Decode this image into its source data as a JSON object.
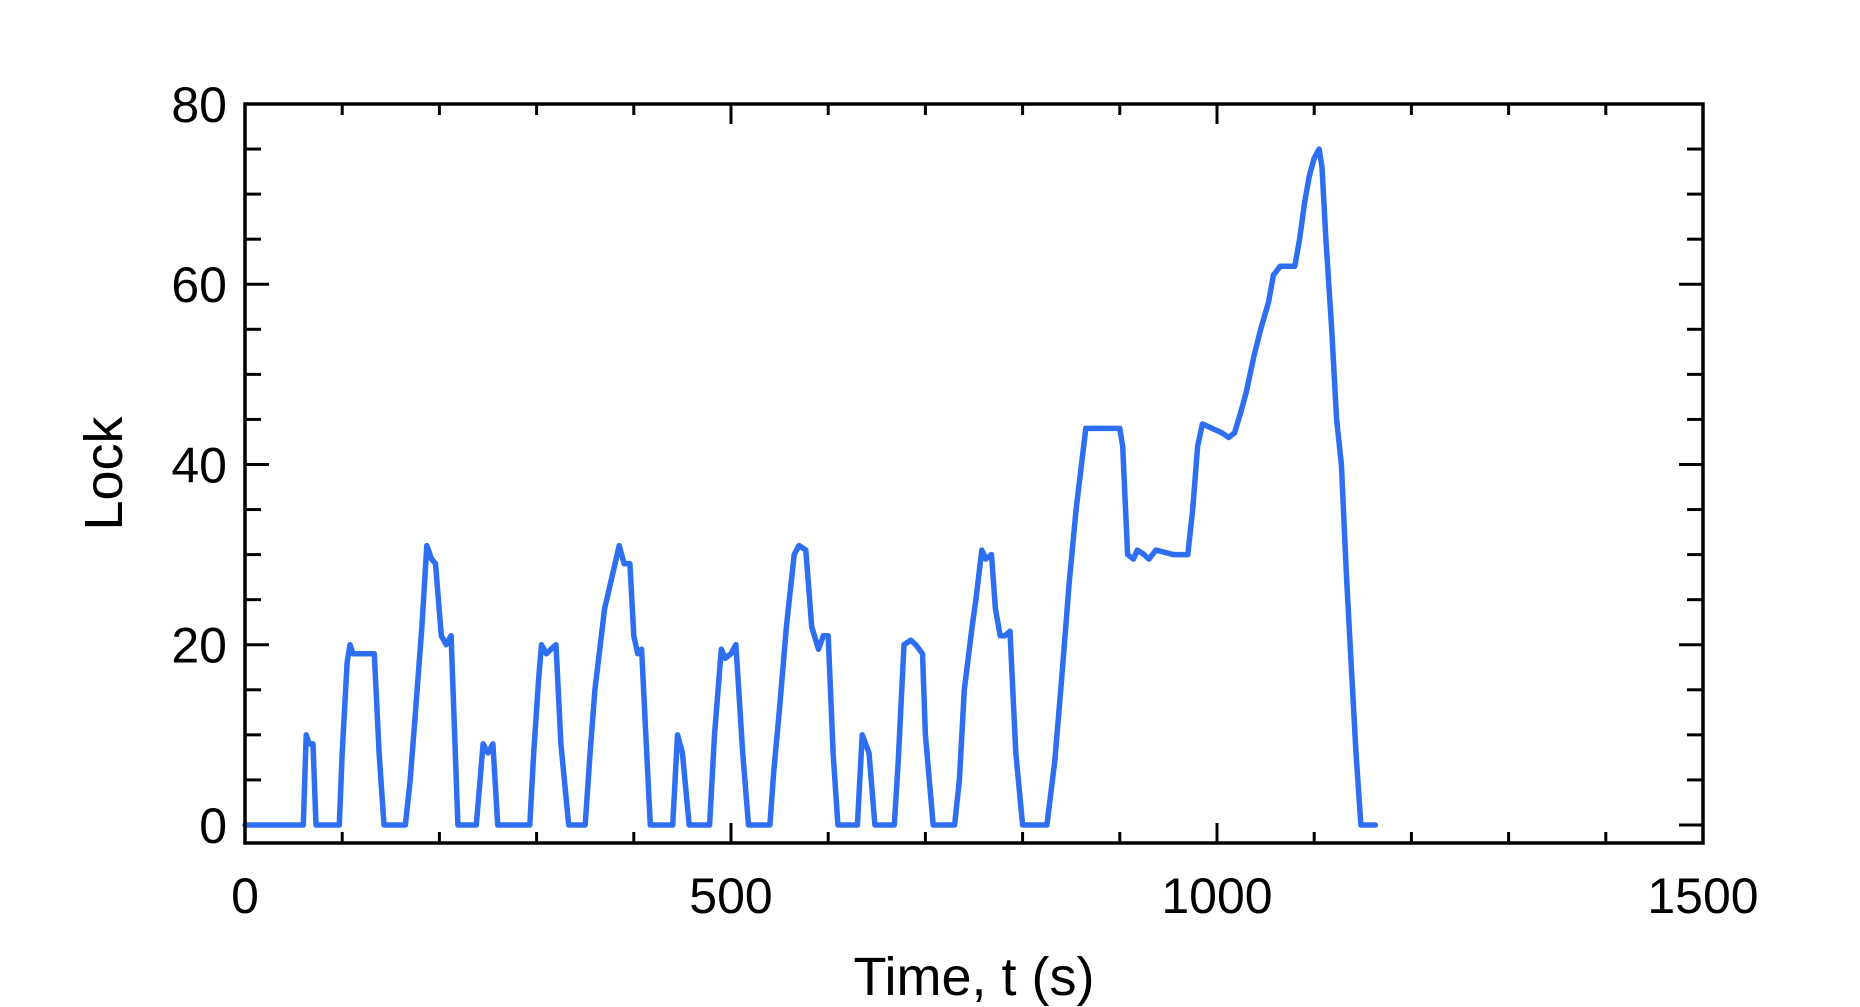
{
  "chart_data": {
    "type": "line",
    "xlabel": "Time, t (s)",
    "ylabel": "Lock",
    "xlim": [
      0,
      1500
    ],
    "ylim": [
      -2,
      80
    ],
    "x_ticks": [
      0,
      500,
      1000,
      1500
    ],
    "y_ticks": [
      0,
      20,
      40,
      60,
      80
    ],
    "grid": false,
    "legend": "none",
    "series": [
      {
        "color": "#2e6ff2",
        "points": [
          [
            0,
            0
          ],
          [
            60,
            0
          ],
          [
            63,
            10
          ],
          [
            66,
            9
          ],
          [
            70,
            9
          ],
          [
            73,
            0
          ],
          [
            97,
            0
          ],
          [
            100,
            8
          ],
          [
            105,
            18
          ],
          [
            108,
            20
          ],
          [
            111,
            19
          ],
          [
            133,
            19
          ],
          [
            138,
            8
          ],
          [
            143,
            0
          ],
          [
            165,
            0
          ],
          [
            170,
            5
          ],
          [
            175,
            12
          ],
          [
            182,
            22
          ],
          [
            187,
            31
          ],
          [
            192,
            29.5
          ],
          [
            196,
            29
          ],
          [
            202,
            21
          ],
          [
            207,
            20
          ],
          [
            212,
            21
          ],
          [
            219,
            0
          ],
          [
            238,
            0
          ],
          [
            245,
            9
          ],
          [
            250,
            8
          ],
          [
            255,
            9
          ],
          [
            260,
            0
          ],
          [
            293,
            0
          ],
          [
            297,
            8
          ],
          [
            302,
            16
          ],
          [
            305,
            20
          ],
          [
            310,
            19
          ],
          [
            320,
            20
          ],
          [
            325,
            9
          ],
          [
            333,
            0
          ],
          [
            350,
            0
          ],
          [
            355,
            8
          ],
          [
            360,
            15
          ],
          [
            370,
            24
          ],
          [
            385,
            31
          ],
          [
            390,
            29
          ],
          [
            396,
            29
          ],
          [
            400,
            21
          ],
          [
            404,
            19
          ],
          [
            408,
            19.5
          ],
          [
            417,
            0
          ],
          [
            440,
            0
          ],
          [
            445,
            10
          ],
          [
            450,
            8
          ],
          [
            457,
            0
          ],
          [
            478,
            0
          ],
          [
            483,
            10
          ],
          [
            490,
            19.5
          ],
          [
            494,
            18.5
          ],
          [
            500,
            19
          ],
          [
            505,
            20
          ],
          [
            512,
            8
          ],
          [
            518,
            0
          ],
          [
            540,
            0
          ],
          [
            544,
            6
          ],
          [
            550,
            13
          ],
          [
            557,
            22
          ],
          [
            565,
            30
          ],
          [
            570,
            31
          ],
          [
            577,
            30.5
          ],
          [
            583,
            22
          ],
          [
            590,
            19.5
          ],
          [
            595,
            21
          ],
          [
            600,
            21
          ],
          [
            605,
            8
          ],
          [
            610,
            0
          ],
          [
            630,
            0
          ],
          [
            635,
            10
          ],
          [
            642,
            8
          ],
          [
            648,
            0
          ],
          [
            668,
            0
          ],
          [
            672,
            7
          ],
          [
            678,
            20
          ],
          [
            685,
            20.5
          ],
          [
            690,
            20
          ],
          [
            697,
            19
          ],
          [
            700,
            10
          ],
          [
            708,
            0
          ],
          [
            730,
            0
          ],
          [
            735,
            5
          ],
          [
            740,
            15
          ],
          [
            748,
            22
          ],
          [
            752,
            25
          ],
          [
            758,
            30.5
          ],
          [
            762,
            29.5
          ],
          [
            768,
            30
          ],
          [
            772,
            24
          ],
          [
            777,
            21
          ],
          [
            782,
            21
          ],
          [
            787,
            21.5
          ],
          [
            793,
            8
          ],
          [
            800,
            0
          ],
          [
            825,
            0
          ],
          [
            833,
            7
          ],
          [
            840,
            16
          ],
          [
            848,
            27
          ],
          [
            855,
            35
          ],
          [
            865,
            44
          ],
          [
            875,
            44
          ],
          [
            900,
            44
          ],
          [
            903,
            42
          ],
          [
            908,
            30
          ],
          [
            914,
            29.5
          ],
          [
            918,
            30.5
          ],
          [
            925,
            30
          ],
          [
            930,
            29.5
          ],
          [
            937,
            30.5
          ],
          [
            955,
            30
          ],
          [
            970,
            30
          ],
          [
            975,
            35
          ],
          [
            980,
            42
          ],
          [
            985,
            44.5
          ],
          [
            995,
            44
          ],
          [
            1005,
            43.5
          ],
          [
            1012,
            43
          ],
          [
            1018,
            43.5
          ],
          [
            1025,
            46
          ],
          [
            1030,
            48
          ],
          [
            1038,
            52
          ],
          [
            1045,
            55
          ],
          [
            1053,
            58
          ],
          [
            1058,
            61
          ],
          [
            1065,
            62
          ],
          [
            1080,
            62
          ],
          [
            1085,
            65
          ],
          [
            1090,
            69
          ],
          [
            1095,
            72
          ],
          [
            1100,
            74
          ],
          [
            1105,
            75
          ],
          [
            1108,
            73
          ],
          [
            1112,
            65
          ],
          [
            1118,
            55
          ],
          [
            1123,
            45
          ],
          [
            1128,
            40
          ],
          [
            1133,
            28
          ],
          [
            1138,
            18
          ],
          [
            1143,
            8
          ],
          [
            1148,
            0
          ],
          [
            1163,
            0
          ]
        ]
      }
    ]
  }
}
